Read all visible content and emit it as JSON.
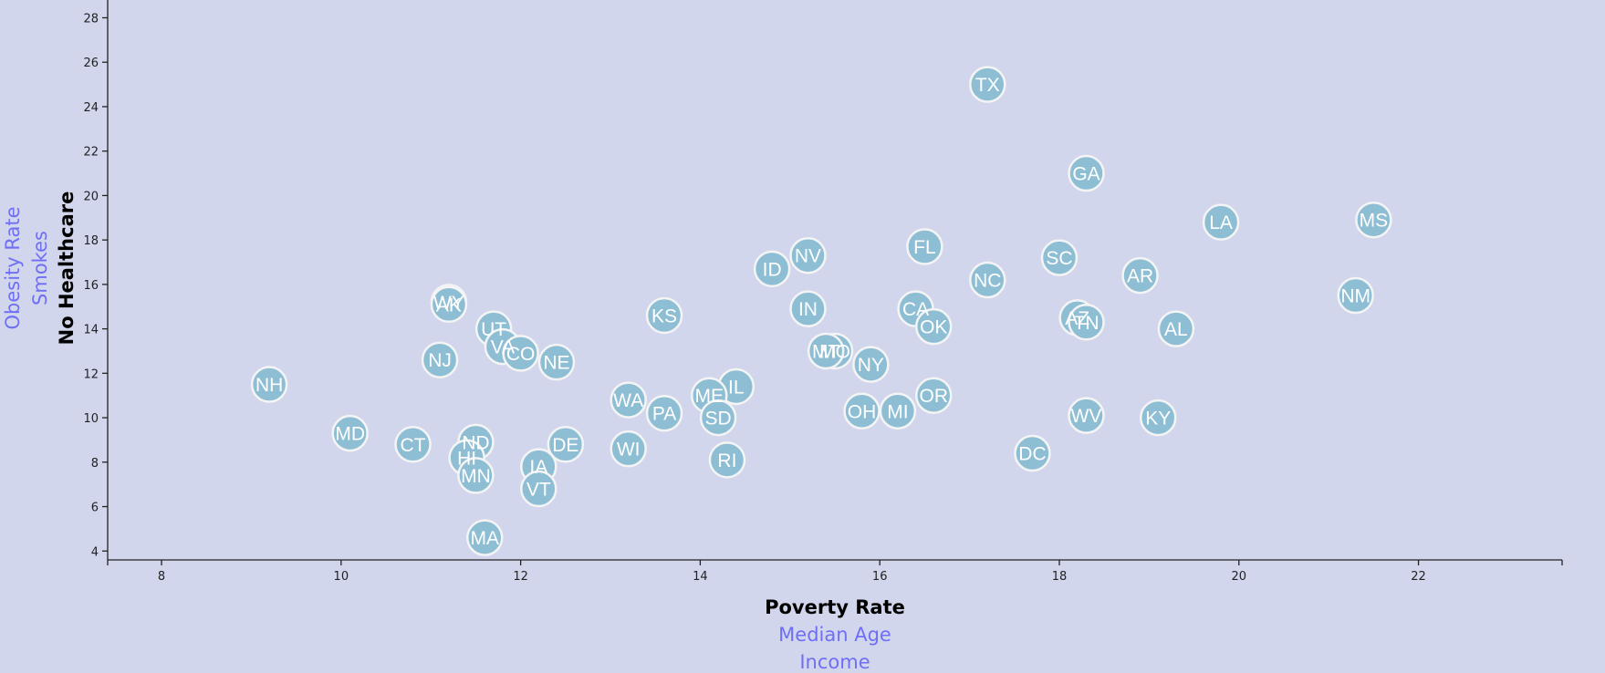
{
  "chart_data": {
    "type": "scatter",
    "xlim": [
      7.4,
      23.6
    ],
    "ylim": [
      3.6,
      28.8
    ],
    "x_ticks": [
      8,
      10,
      12,
      14,
      16,
      18,
      20,
      22
    ],
    "y_ticks": [
      4,
      6,
      8,
      10,
      12,
      14,
      16,
      18,
      20,
      22,
      24,
      26,
      28
    ],
    "x_axis_labels": [
      {
        "text": "Poverty Rate",
        "active": true
      },
      {
        "text": "Median Age",
        "active": false
      },
      {
        "text": "Income",
        "active": false
      }
    ],
    "y_axis_labels": [
      {
        "text": "No Healthcare",
        "active": true
      },
      {
        "text": "Smokes",
        "active": false
      },
      {
        "text": "Obesity Rate",
        "active": false
      }
    ],
    "points": [
      {
        "label": "TX",
        "x": 17.2,
        "y": 25.0
      },
      {
        "label": "GA",
        "x": 18.3,
        "y": 21.0
      },
      {
        "label": "LA",
        "x": 19.8,
        "y": 18.8
      },
      {
        "label": "MS",
        "x": 21.5,
        "y": 18.9
      },
      {
        "label": "FL",
        "x": 16.5,
        "y": 17.7
      },
      {
        "label": "NV",
        "x": 15.2,
        "y": 17.3
      },
      {
        "label": "SC",
        "x": 18.0,
        "y": 17.2
      },
      {
        "label": "ID",
        "x": 14.8,
        "y": 16.7
      },
      {
        "label": "AR",
        "x": 18.9,
        "y": 16.4
      },
      {
        "label": "NC",
        "x": 17.2,
        "y": 16.2
      },
      {
        "label": "NM",
        "x": 21.3,
        "y": 15.5
      },
      {
        "label": "WY",
        "x": 11.2,
        "y": 15.2
      },
      {
        "label": "AK",
        "x": 11.2,
        "y": 15.1
      },
      {
        "label": "IN",
        "x": 15.2,
        "y": 14.9
      },
      {
        "label": "CA",
        "x": 16.4,
        "y": 14.9
      },
      {
        "label": "KS",
        "x": 13.6,
        "y": 14.6
      },
      {
        "label": "AZ",
        "x": 18.2,
        "y": 14.5
      },
      {
        "label": "TN",
        "x": 18.3,
        "y": 14.3
      },
      {
        "label": "OK",
        "x": 16.6,
        "y": 14.1
      },
      {
        "label": "AL",
        "x": 19.3,
        "y": 14.0
      },
      {
        "label": "UT",
        "x": 11.7,
        "y": 14.0
      },
      {
        "label": "VA",
        "x": 11.8,
        "y": 13.2
      },
      {
        "label": "CO",
        "x": 12.0,
        "y": 12.9
      },
      {
        "label": "MO",
        "x": 15.5,
        "y": 13.0
      },
      {
        "label": "MT",
        "x": 15.4,
        "y": 13.0
      },
      {
        "label": "NJ",
        "x": 11.1,
        "y": 12.6
      },
      {
        "label": "NE",
        "x": 12.4,
        "y": 12.5
      },
      {
        "label": "NY",
        "x": 15.9,
        "y": 12.4
      },
      {
        "label": "NH",
        "x": 9.2,
        "y": 11.5
      },
      {
        "label": "IL",
        "x": 14.4,
        "y": 11.4
      },
      {
        "label": "ME",
        "x": 14.1,
        "y": 11.0
      },
      {
        "label": "OR",
        "x": 16.6,
        "y": 11.0
      },
      {
        "label": "WA",
        "x": 13.2,
        "y": 10.8
      },
      {
        "label": "OH",
        "x": 15.8,
        "y": 10.3
      },
      {
        "label": "MI",
        "x": 16.2,
        "y": 10.3
      },
      {
        "label": "PA",
        "x": 13.6,
        "y": 10.2
      },
      {
        "label": "WV",
        "x": 18.3,
        "y": 10.1
      },
      {
        "label": "KY",
        "x": 19.1,
        "y": 10.0
      },
      {
        "label": "SD",
        "x": 14.2,
        "y": 10.0
      },
      {
        "label": "MD",
        "x": 10.1,
        "y": 9.3
      },
      {
        "label": "CT",
        "x": 10.8,
        "y": 8.8
      },
      {
        "label": "DE",
        "x": 12.5,
        "y": 8.8
      },
      {
        "label": "ND",
        "x": 11.5,
        "y": 8.9
      },
      {
        "label": "WI",
        "x": 13.2,
        "y": 8.6
      },
      {
        "label": "DC",
        "x": 17.7,
        "y": 8.4
      },
      {
        "label": "HI",
        "x": 11.4,
        "y": 8.2
      },
      {
        "label": "RI",
        "x": 14.3,
        "y": 8.1
      },
      {
        "label": "IA",
        "x": 12.2,
        "y": 7.8
      },
      {
        "label": "MN",
        "x": 11.5,
        "y": 7.4
      },
      {
        "label": "VT",
        "x": 12.2,
        "y": 6.8
      },
      {
        "label": "MA",
        "x": 11.6,
        "y": 4.6
      }
    ]
  },
  "colors": {
    "background": "#d2d6ec",
    "marker_fill": "#8ebed4",
    "marker_stroke": "#f4f4f4",
    "marker_text": "#ffffff",
    "active_label": "#000000",
    "inactive_label": "#6f6ff5"
  }
}
